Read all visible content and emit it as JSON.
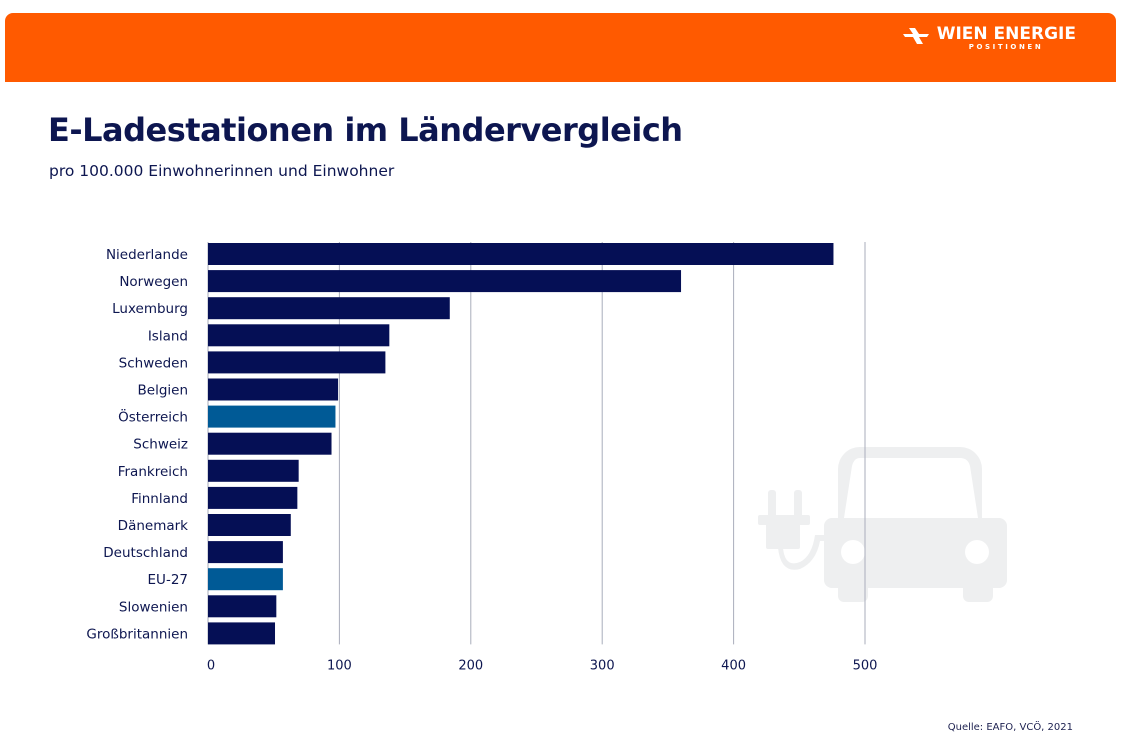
{
  "header": {
    "brand_name": "WIEN ENERGIE",
    "brand_sub": "POSITIONEN",
    "brand_color": "#ff5a00"
  },
  "title": "E-Ladestationen im Ländervergleich",
  "subtitle": "pro 100.000 Einwohnerinnen und Einwohner",
  "source": "Quelle: EAFO, VCÖ, 2021",
  "decoration": "electric-car-plug-icon",
  "chart_data": {
    "type": "bar",
    "orientation": "horizontal",
    "title": "E-Ladestationen im Ländervergleich",
    "subtitle": "pro 100.000 Einwohnerinnen und Einwohner",
    "xlabel": "",
    "ylabel": "",
    "xlim": [
      0,
      500
    ],
    "xticks": [
      "0",
      "100",
      "200",
      "300",
      "400",
      "500"
    ],
    "grid": true,
    "categories": [
      "Niederlande",
      "Norwegen",
      "Luxemburg",
      "Island",
      "Schweden",
      "Belgien",
      "Österreich",
      "Schweiz",
      "Frankreich",
      "Finnland",
      "Dänemark",
      "Deutschland",
      "EU-27",
      "Slowenien",
      "Großbritannien"
    ],
    "values": [
      476,
      360,
      184,
      138,
      135,
      99,
      97,
      94,
      69,
      68,
      63,
      57,
      57,
      52,
      51
    ],
    "highlighted": [
      "Österreich",
      "EU-27"
    ],
    "colors": {
      "default": "#050f55",
      "highlight": "#005a96"
    }
  }
}
